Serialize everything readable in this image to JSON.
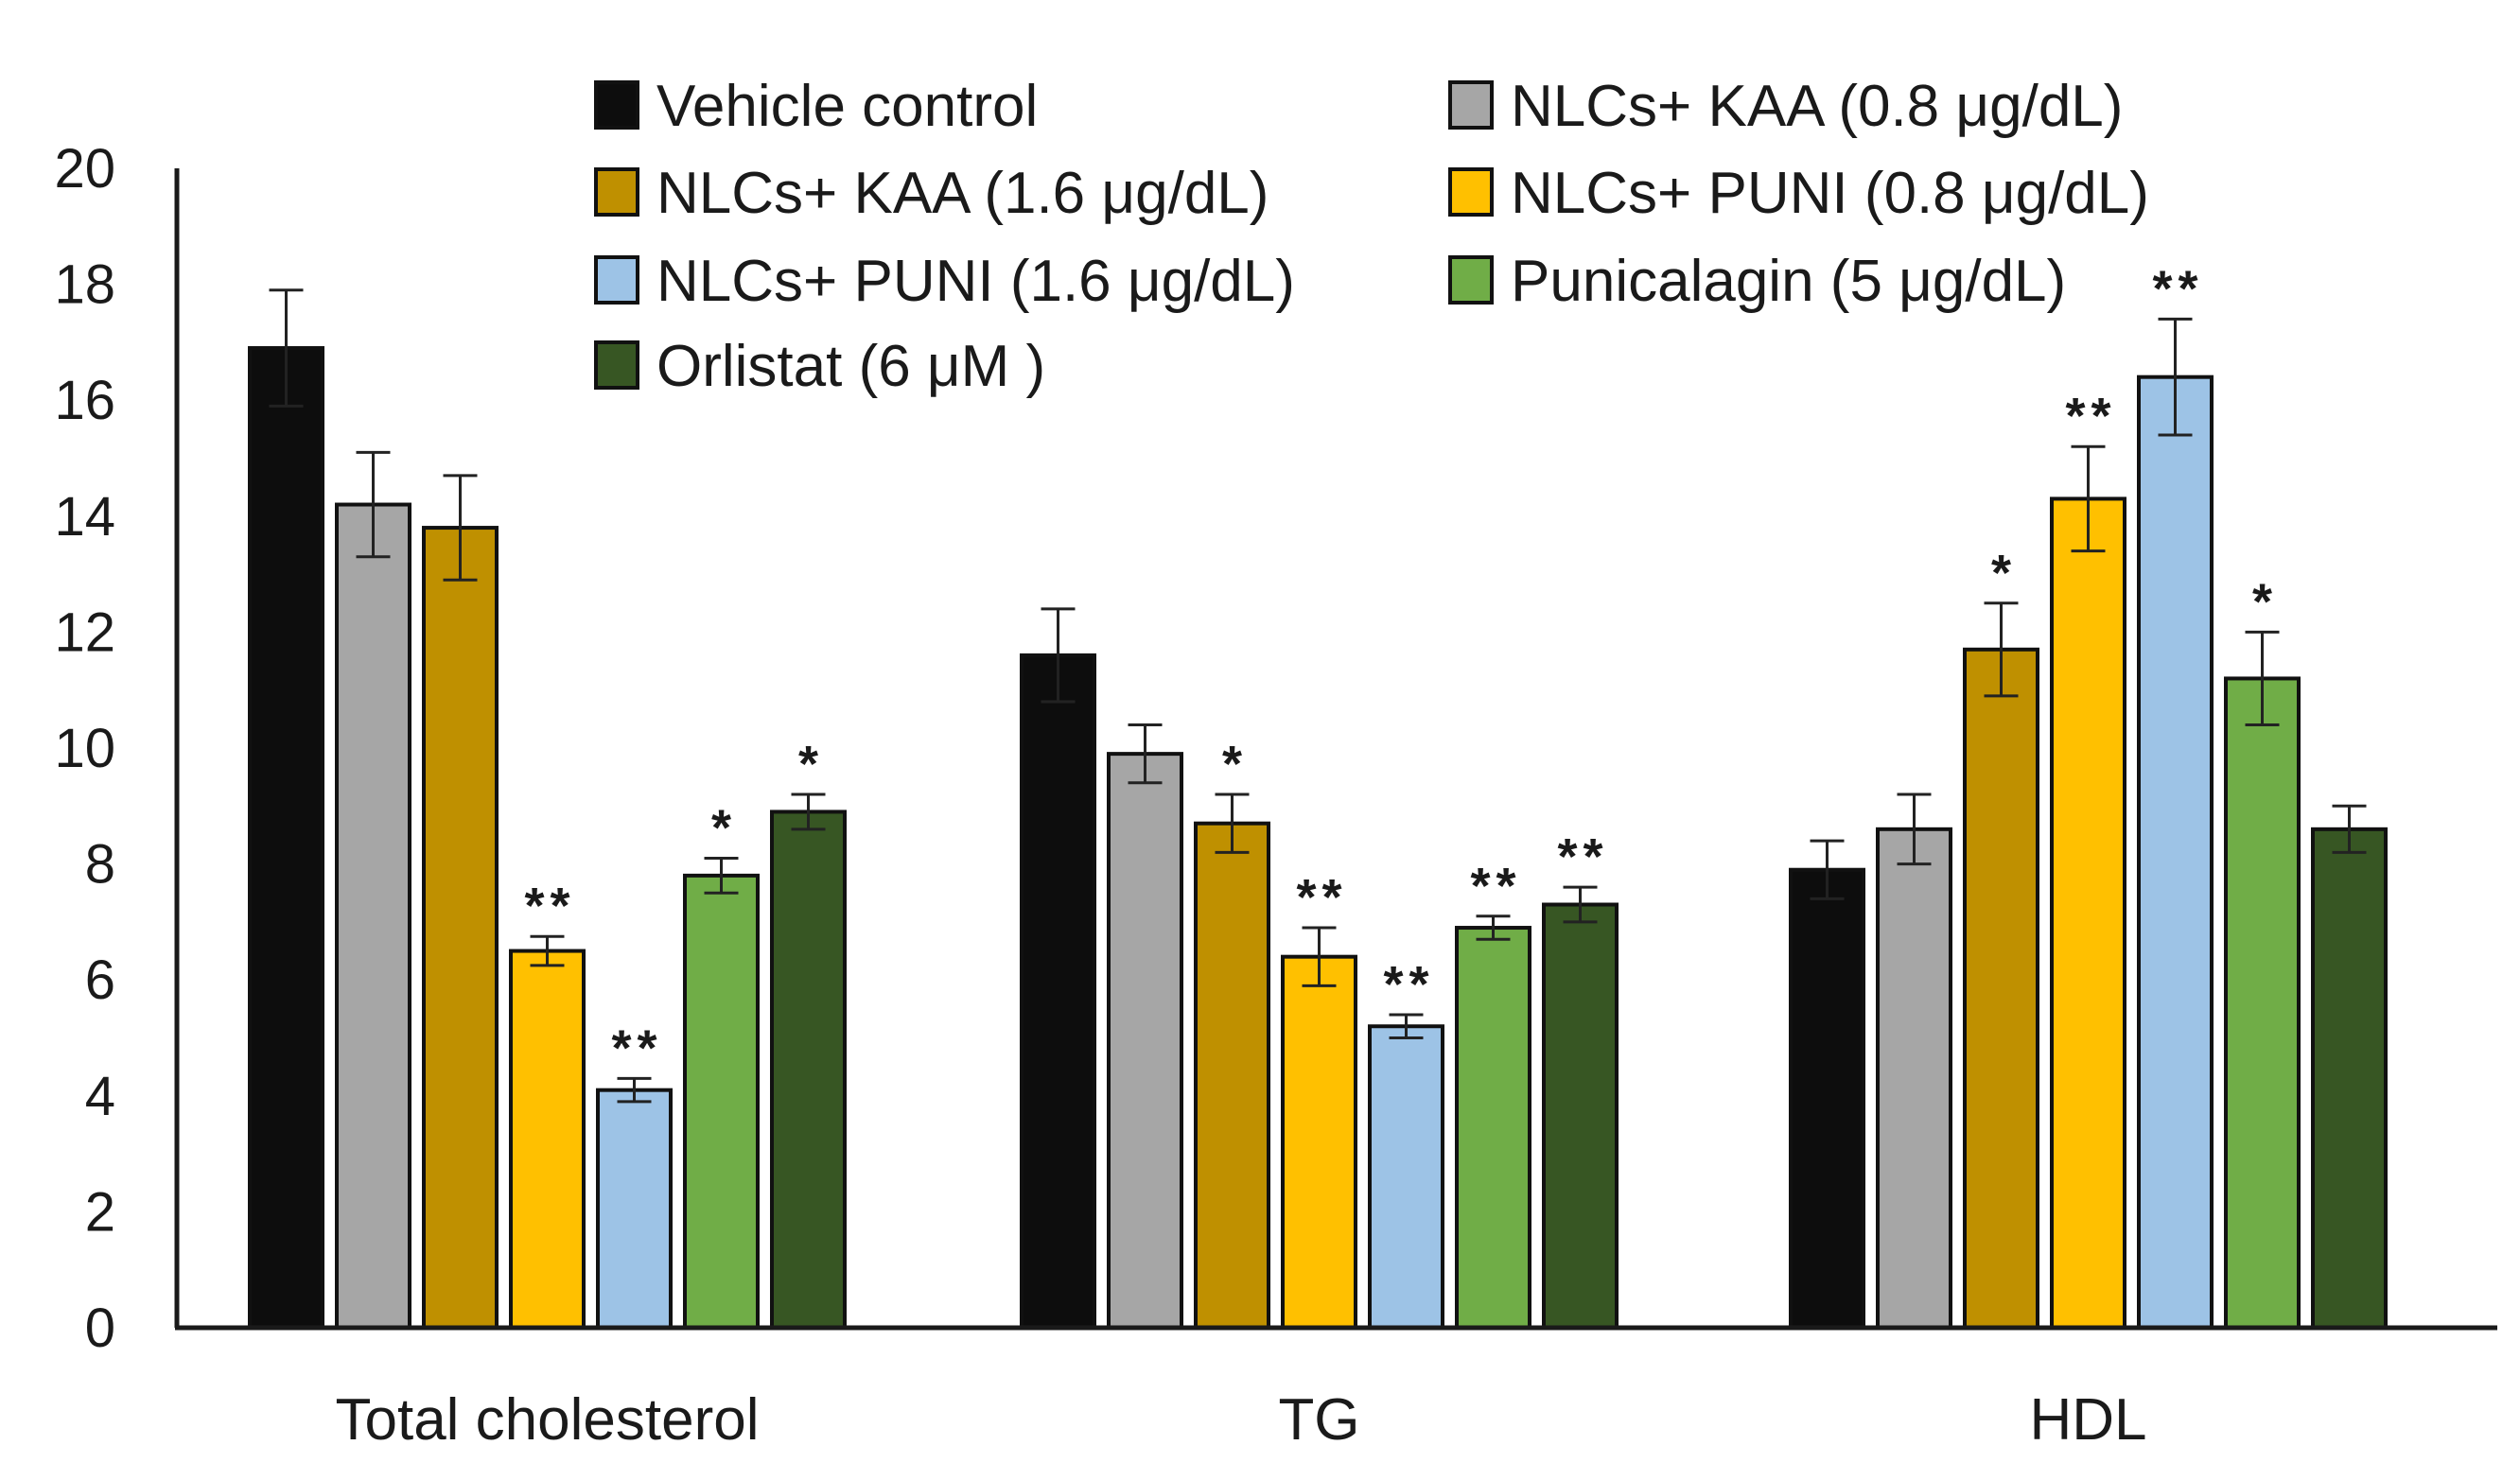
{
  "chart_data": {
    "type": "bar",
    "title": "",
    "xlabel": "",
    "ylabel": "",
    "ylim": [
      0,
      20
    ],
    "yticks": [
      0,
      2,
      4,
      6,
      8,
      10,
      12,
      14,
      16,
      18,
      20
    ],
    "grid": false,
    "legend_position": "top-center",
    "categories": [
      "Total cholesterol",
      "TG",
      "HDL"
    ],
    "series": [
      {
        "name": "Vehicle control",
        "color": "#0d0d0d",
        "values": [
          16.9,
          11.6,
          7.9
        ],
        "errors": [
          1.0,
          0.8,
          0.5
        ],
        "significance": [
          "",
          "",
          ""
        ]
      },
      {
        "name": "NLCs+ KAA (0.8 μg/dL)",
        "color": "#a6a6a6",
        "values": [
          14.2,
          9.9,
          8.6
        ],
        "errors": [
          0.9,
          0.5,
          0.6
        ],
        "significance": [
          "",
          "",
          ""
        ]
      },
      {
        "name": "NLCs+ KAA (1.6 μg/dL)",
        "color": "#bf9000",
        "values": [
          13.8,
          8.7,
          11.7
        ],
        "errors": [
          0.9,
          0.5,
          0.8
        ],
        "significance": [
          "",
          "*",
          "*"
        ]
      },
      {
        "name": "NLCs+ PUNI (0.8 μg/dL)",
        "color": "#ffc000",
        "values": [
          6.5,
          6.4,
          14.3
        ],
        "errors": [
          0.25,
          0.5,
          0.9
        ],
        "significance": [
          "**",
          "**",
          "**"
        ]
      },
      {
        "name": "NLCs+ PUNI (1.6 μg/dL)",
        "color": "#9dc3e6",
        "values": [
          4.1,
          5.2,
          16.4
        ],
        "errors": [
          0.2,
          0.2,
          1.0
        ],
        "significance": [
          "**",
          "**",
          "**"
        ]
      },
      {
        "name": "Punicalagin (5 μg/dL)",
        "color": "#70ad47",
        "values": [
          7.8,
          6.9,
          11.2
        ],
        "errors": [
          0.3,
          0.2,
          0.8
        ],
        "significance": [
          "*",
          "**",
          "*"
        ]
      },
      {
        "name": "Orlistat (6 μM )",
        "color": "#375623",
        "values": [
          8.9,
          7.3,
          8.6
        ],
        "errors": [
          0.3,
          0.3,
          0.4
        ],
        "significance": [
          "*",
          "**",
          ""
        ]
      }
    ],
    "legend": [
      "Vehicle control",
      "NLCs+ KAA (0.8 μg/dL)",
      "NLCs+ KAA (1.6 μg/dL)",
      "NLCs+ PUNI (0.8 μg/dL)",
      "NLCs+ PUNI (1.6 μg/dL)",
      "Punicalagin (5 μg/dL)",
      "Orlistat (6 μM )"
    ]
  }
}
